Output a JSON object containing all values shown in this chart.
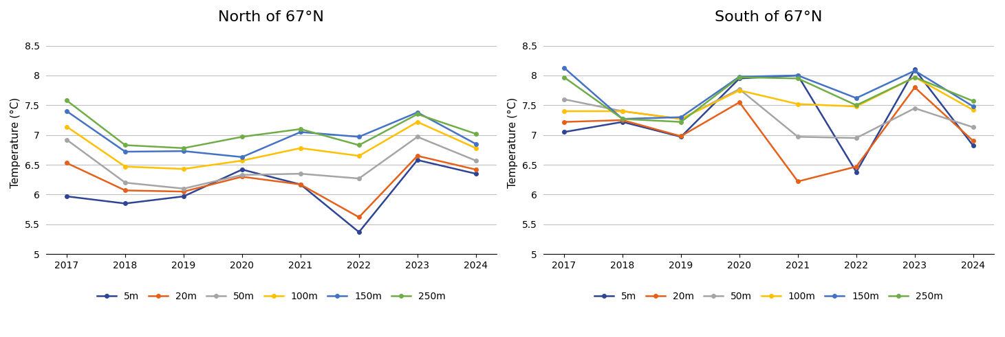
{
  "years": [
    2017,
    2018,
    2019,
    2020,
    2021,
    2022,
    2023,
    2024
  ],
  "north": {
    "title": "North of 67°N",
    "5m": [
      5.97,
      5.85,
      5.97,
      6.42,
      6.17,
      5.37,
      6.58,
      6.35
    ],
    "20m": [
      6.53,
      6.07,
      6.05,
      6.3,
      6.17,
      5.62,
      6.65,
      6.42
    ],
    "50m": [
      6.92,
      6.2,
      6.1,
      6.33,
      6.35,
      6.27,
      6.97,
      6.57
    ],
    "100m": [
      7.14,
      6.47,
      6.43,
      6.57,
      6.78,
      6.65,
      7.22,
      6.78
    ],
    "150m": [
      7.4,
      6.72,
      6.73,
      6.63,
      7.05,
      6.97,
      7.38,
      6.85
    ],
    "250m": [
      7.58,
      6.83,
      6.78,
      6.97,
      7.1,
      6.83,
      7.35,
      7.02
    ]
  },
  "south": {
    "title": "South of 67°N",
    "5m": [
      7.05,
      7.22,
      6.97,
      7.95,
      8.0,
      6.38,
      8.1,
      6.82
    ],
    "20m": [
      7.22,
      7.25,
      6.98,
      7.55,
      6.22,
      6.47,
      7.8,
      6.9
    ],
    "50m": [
      7.6,
      7.4,
      7.27,
      7.77,
      6.97,
      6.95,
      7.45,
      7.13
    ],
    "100m": [
      7.4,
      7.4,
      7.27,
      7.75,
      7.52,
      7.48,
      7.97,
      7.42
    ],
    "150m": [
      8.13,
      7.27,
      7.3,
      7.98,
      8.0,
      7.62,
      8.08,
      7.48
    ],
    "250m": [
      7.97,
      7.27,
      7.22,
      7.97,
      7.95,
      7.5,
      7.97,
      7.57
    ]
  },
  "series_colors": {
    "5m": "#2e4494",
    "20m": "#e5601a",
    "50m": "#a5a5a5",
    "100m": "#ffc000",
    "150m": "#4472c4",
    "250m": "#70ad47"
  },
  "ylim": [
    5.0,
    8.75
  ],
  "yticks": [
    5.0,
    5.5,
    6.0,
    6.5,
    7.0,
    7.5,
    8.0,
    8.5
  ],
  "ylabel": "Temperature (°C)",
  "background_color": "#ffffff",
  "line_width": 1.8,
  "marker": "o",
  "marker_size": 4
}
